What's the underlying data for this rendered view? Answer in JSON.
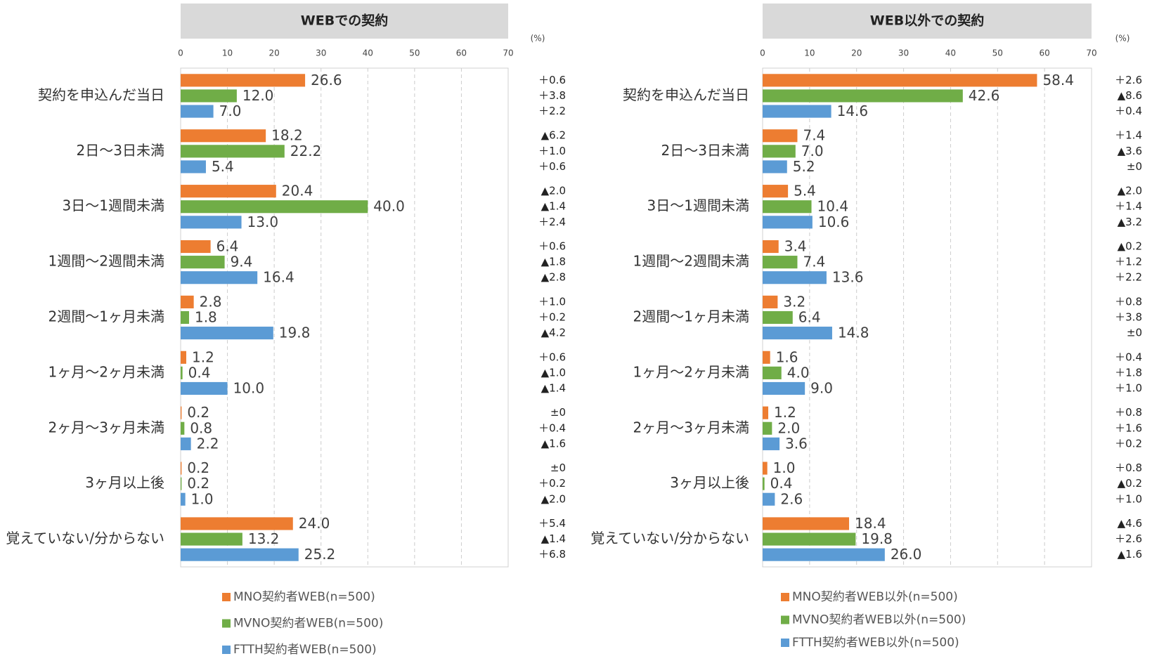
{
  "chart_data": [
    {
      "type": "bar",
      "orientation": "horizontal",
      "title": "WEBでの契約",
      "unit": "(%)",
      "categories": [
        "契約を申込んだ当日",
        "2日～3日未満",
        "3日～1週間未満",
        "1週間～2週間未満",
        "2週間～1ヶ月未満",
        "1ヶ月～2ヶ月未満",
        "2ヶ月～3ヶ月未満",
        "3ヶ月以上後",
        "覚えていない/分からない"
      ],
      "xlim": [
        0,
        70
      ],
      "xticks": [
        0,
        10,
        20,
        30,
        40,
        50,
        60,
        70
      ],
      "grid": true,
      "series": [
        {
          "name": "MNO契約者WEB(n=500)",
          "color": "#ed7d31",
          "values": [
            26.6,
            18.2,
            20.4,
            6.4,
            2.8,
            1.2,
            0.2,
            0.2,
            24.0
          ],
          "value_labels": [
            "26.6",
            "18.2",
            "20.4",
            "6.4",
            "2.8",
            "1.2",
            "0.2",
            "0.2",
            "24.0"
          ],
          "change_labels": [
            "＋0.6",
            "▲6.2",
            "▲2.0",
            "＋0.6",
            "＋1.0",
            "＋0.6",
            "±0",
            "±0",
            "＋5.4"
          ]
        },
        {
          "name": "MVNO契約者WEB(n=500)",
          "color": "#70ad47",
          "values": [
            12.0,
            22.2,
            40.0,
            9.4,
            1.8,
            0.4,
            0.8,
            0.2,
            13.2
          ],
          "value_labels": [
            "12.0",
            "22.2",
            "40.0",
            "9.4",
            "1.8",
            "0.4",
            "0.8",
            "0.2",
            "13.2"
          ],
          "change_labels": [
            "＋3.8",
            "＋1.0",
            "▲1.4",
            "▲1.8",
            "＋0.2",
            "▲1.0",
            "＋0.4",
            "＋0.2",
            "▲1.4"
          ]
        },
        {
          "name": "FTTH契約者WEB(n=500)",
          "color": "#5b9bd5",
          "values": [
            7.0,
            5.4,
            13.0,
            16.4,
            19.8,
            10.0,
            2.2,
            1.0,
            25.2
          ],
          "value_labels": [
            "7.0",
            "5.4",
            "13.0",
            "16.4",
            "19.8",
            "10.0",
            "2.2",
            "1.0",
            "25.2"
          ],
          "change_labels": [
            "＋2.2",
            "＋0.6",
            "＋2.4",
            "▲2.8",
            "▲4.2",
            "▲1.4",
            "▲1.6",
            "▲2.0",
            "＋6.8"
          ]
        }
      ]
    },
    {
      "type": "bar",
      "orientation": "horizontal",
      "title": "WEB以外での契約",
      "unit": "(%)",
      "categories": [
        "契約を申込んだ当日",
        "2日～3日未満",
        "3日～1週間未満",
        "1週間～2週間未満",
        "2週間～1ヶ月未満",
        "1ヶ月～2ヶ月未満",
        "2ヶ月～3ヶ月未満",
        "3ヶ月以上後",
        "覚えていない/分からない"
      ],
      "xlim": [
        0,
        70
      ],
      "xticks": [
        0,
        10,
        20,
        30,
        40,
        50,
        60,
        70
      ],
      "grid": true,
      "series": [
        {
          "name": "MNO契約者WEB以外(n=500)",
          "color": "#ed7d31",
          "values": [
            58.4,
            7.4,
            5.4,
            3.4,
            3.2,
            1.6,
            1.2,
            1.0,
            18.4
          ],
          "value_labels": [
            "58.4",
            "7.4",
            "5.4",
            "3.4",
            "3.2",
            "1.6",
            "1.2",
            "1.0",
            "18.4"
          ],
          "change_labels": [
            "＋2.6",
            "＋1.4",
            "▲2.0",
            "▲0.2",
            "＋0.8",
            "＋0.4",
            "＋0.8",
            "＋0.8",
            "▲4.6"
          ]
        },
        {
          "name": "MVNO契約者WEB以外(n=500)",
          "color": "#70ad47",
          "values": [
            42.6,
            7.0,
            10.4,
            7.4,
            6.4,
            4.0,
            2.0,
            0.4,
            19.8
          ],
          "value_labels": [
            "42.6",
            "7.0",
            "10.4",
            "7.4",
            "6.4",
            "4.0",
            "2.0",
            "0.4",
            "19.8"
          ],
          "change_labels": [
            "▲8.6",
            "▲3.6",
            "＋1.4",
            "＋1.2",
            "＋3.8",
            "＋1.8",
            "＋1.6",
            "▲0.2",
            "＋2.6"
          ]
        },
        {
          "name": "FTTH契約者WEB以外(n=500)",
          "color": "#5b9bd5",
          "values": [
            14.6,
            5.2,
            10.6,
            13.6,
            14.8,
            9.0,
            3.6,
            2.6,
            26.0
          ],
          "value_labels": [
            "14.6",
            "5.2",
            "10.6",
            "13.6",
            "14.8",
            "9.0",
            "3.6",
            "2.6",
            "26.0"
          ],
          "change_labels": [
            "＋0.4",
            "±0",
            "▲3.2",
            "＋2.2",
            "±0",
            "＋1.0",
            "＋0.2",
            "＋1.0",
            "▲1.6"
          ]
        }
      ]
    }
  ]
}
